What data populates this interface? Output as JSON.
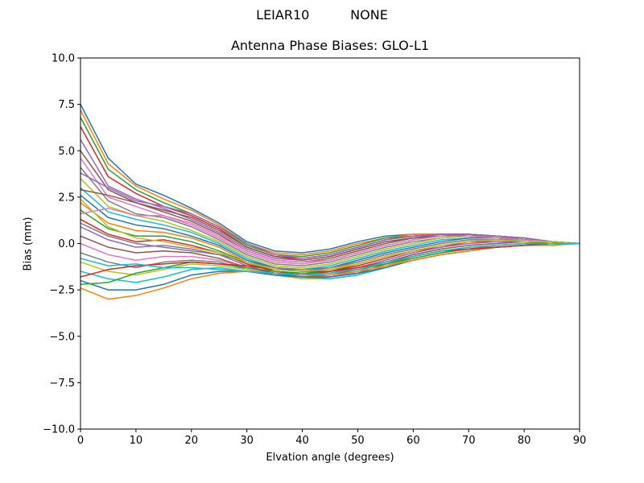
{
  "header": {
    "suptitle": "LEIAR10          NONE"
  },
  "colors": [
    "#1f77b4",
    "#ff7f0e",
    "#2ca02c",
    "#d62728",
    "#9467bd",
    "#8c564b",
    "#e377c2",
    "#7f7f7f",
    "#bcbd22",
    "#17becf"
  ],
  "chart_data": {
    "type": "line",
    "title": "Antenna Phase Biases: GLO-L1",
    "xlabel": "Elvation angle (degrees)",
    "ylabel": "Bias (mm)",
    "xlim": [
      0,
      90
    ],
    "ylim": [
      -10,
      10
    ],
    "x": [
      0,
      5,
      10,
      15,
      20,
      25,
      30,
      35,
      40,
      45,
      50,
      55,
      60,
      65,
      70,
      75,
      80,
      85,
      90
    ],
    "xticks": [
      0,
      10,
      20,
      30,
      40,
      50,
      60,
      70,
      80,
      90
    ],
    "yticks": [
      -10.0,
      -7.5,
      -5.0,
      -2.5,
      0.0,
      2.5,
      5.0,
      7.5,
      10.0
    ],
    "ytick_labels": [
      "−10.0",
      "−7.5",
      "−5.0",
      "−2.5",
      "0.0",
      "2.5",
      "5.0",
      "7.5",
      "10.0"
    ],
    "grid": false,
    "legend": "none",
    "series": [
      {
        "values": [
          7.5,
          4.6,
          3.2,
          2.6,
          1.9,
          1.1,
          0.1,
          -0.4,
          -0.5,
          -0.3,
          0.1,
          0.4,
          0.5,
          0.5,
          0.4,
          0.3,
          0.2,
          0.1,
          0.0
        ]
      },
      {
        "values": [
          7.2,
          4.3,
          3.1,
          2.4,
          1.8,
          1.0,
          0.0,
          -0.5,
          -0.6,
          -0.4,
          0.0,
          0.3,
          0.5,
          0.5,
          0.5,
          0.3,
          0.2,
          0.1,
          0.0
        ]
      },
      {
        "values": [
          6.8,
          4.0,
          2.9,
          2.2,
          1.6,
          0.9,
          -0.1,
          -0.6,
          -0.7,
          -0.5,
          -0.1,
          0.3,
          0.4,
          0.5,
          0.5,
          0.4,
          0.2,
          0.1,
          0.0
        ]
      },
      {
        "values": [
          6.3,
          3.6,
          2.7,
          2.0,
          1.5,
          0.8,
          -0.2,
          -0.7,
          -0.8,
          -0.6,
          -0.2,
          0.2,
          0.4,
          0.5,
          0.5,
          0.4,
          0.3,
          0.1,
          0.0
        ]
      },
      {
        "values": [
          5.6,
          3.1,
          2.4,
          1.9,
          1.3,
          0.6,
          -0.3,
          -0.8,
          -0.9,
          -0.7,
          -0.3,
          0.1,
          0.3,
          0.5,
          0.5,
          0.4,
          0.3,
          0.1,
          0.0
        ]
      },
      {
        "values": [
          5.0,
          2.9,
          2.2,
          1.7,
          1.2,
          0.5,
          -0.4,
          -0.9,
          -1.0,
          -0.8,
          -0.4,
          0.0,
          0.3,
          0.4,
          0.5,
          0.4,
          0.3,
          0.1,
          0.0
        ]
      },
      {
        "values": [
          4.6,
          2.5,
          2.0,
          1.5,
          1.0,
          0.3,
          -0.5,
          -1.0,
          -1.1,
          -0.9,
          -0.5,
          -0.1,
          0.2,
          0.4,
          0.4,
          0.4,
          0.3,
          0.1,
          0.0
        ]
      },
      {
        "values": [
          4.1,
          2.3,
          1.6,
          1.4,
          0.9,
          0.2,
          -0.6,
          -1.1,
          -1.2,
          -1.0,
          -0.6,
          -0.2,
          0.1,
          0.3,
          0.4,
          0.4,
          0.3,
          0.1,
          0.0
        ]
      },
      {
        "values": [
          3.5,
          2.0,
          1.5,
          1.2,
          0.7,
          0.1,
          -0.7,
          -1.2,
          -1.3,
          -1.1,
          -0.7,
          -0.3,
          0.0,
          0.3,
          0.4,
          0.3,
          0.2,
          0.1,
          0.0
        ]
      },
      {
        "values": [
          3.0,
          1.7,
          1.3,
          1.0,
          0.6,
          0.0,
          -0.8,
          -1.3,
          -1.4,
          -1.2,
          -0.8,
          -0.4,
          -0.1,
          0.2,
          0.3,
          0.3,
          0.2,
          0.1,
          0.0
        ]
      },
      {
        "values": [
          2.6,
          1.4,
          1.0,
          0.8,
          0.4,
          -0.1,
          -0.9,
          -1.3,
          -1.5,
          -1.3,
          -0.9,
          -0.5,
          -0.2,
          0.1,
          0.3,
          0.3,
          0.2,
          0.1,
          0.0
        ]
      },
      {
        "values": [
          2.2,
          1.1,
          0.7,
          0.6,
          0.3,
          -0.2,
          -1.0,
          -1.4,
          -1.5,
          -1.4,
          -1.0,
          -0.6,
          -0.3,
          0.0,
          0.2,
          0.2,
          0.2,
          0.1,
          0.0
        ]
      },
      {
        "values": [
          1.8,
          0.8,
          0.4,
          0.4,
          0.1,
          -0.4,
          -1.0,
          -1.5,
          -1.6,
          -1.5,
          -1.1,
          -0.7,
          -0.4,
          -0.1,
          0.1,
          0.2,
          0.2,
          0.1,
          0.0
        ]
      },
      {
        "values": [
          1.3,
          0.5,
          0.1,
          0.2,
          -0.1,
          -0.5,
          -1.1,
          -1.5,
          -1.7,
          -1.5,
          -1.2,
          -0.8,
          -0.4,
          -0.2,
          0.1,
          0.1,
          0.1,
          0.1,
          0.0
        ]
      },
      {
        "values": [
          0.9,
          0.2,
          -0.2,
          -0.1,
          -0.3,
          -0.6,
          -1.2,
          -1.6,
          -1.7,
          -1.6,
          -1.3,
          -0.9,
          -0.5,
          -0.2,
          0.0,
          0.1,
          0.1,
          0.0,
          0.0
        ]
      },
      {
        "values": [
          0.4,
          -0.2,
          -0.5,
          -0.4,
          -0.5,
          -0.8,
          -1.3,
          -1.6,
          -1.8,
          -1.7,
          -1.4,
          -1.0,
          -0.6,
          -0.3,
          -0.1,
          0.0,
          0.1,
          0.0,
          0.0
        ]
      },
      {
        "values": [
          0.0,
          -0.6,
          -0.9,
          -0.7,
          -0.7,
          -0.9,
          -1.3,
          -1.7,
          -1.8,
          -1.8,
          -1.5,
          -1.0,
          -0.7,
          -0.4,
          -0.2,
          -0.1,
          0.0,
          0.0,
          0.0
        ]
      },
      {
        "values": [
          -0.5,
          -1.0,
          -1.3,
          -1.0,
          -0.9,
          -1.0,
          -1.4,
          -1.7,
          -1.9,
          -1.8,
          -1.6,
          -1.1,
          -0.7,
          -0.4,
          -0.3,
          -0.1,
          0.0,
          0.0,
          0.0
        ]
      },
      {
        "values": [
          -1.0,
          -1.5,
          -1.7,
          -1.4,
          -1.1,
          -1.2,
          -1.4,
          -1.7,
          -1.9,
          -1.9,
          -1.7,
          -1.2,
          -0.8,
          -0.5,
          -0.3,
          -0.2,
          -0.1,
          0.0,
          0.0
        ]
      },
      {
        "values": [
          -1.5,
          -1.9,
          -2.1,
          -1.8,
          -1.4,
          -1.3,
          -1.5,
          -1.7,
          -1.8,
          -1.9,
          -1.7,
          -1.3,
          -0.9,
          -0.6,
          -0.4,
          -0.2,
          -0.1,
          0.0,
          0.0
        ]
      },
      {
        "values": [
          -2.0,
          -2.5,
          -2.5,
          -2.2,
          -1.7,
          -1.5,
          -1.5,
          -1.7,
          -1.8,
          -1.8,
          -1.6,
          -1.3,
          -0.9,
          -0.6,
          -0.4,
          -0.2,
          -0.1,
          0.0,
          0.0
        ]
      },
      {
        "values": [
          -2.4,
          -3.0,
          -2.8,
          -2.4,
          -1.9,
          -1.6,
          -1.5,
          -1.6,
          -1.7,
          -1.7,
          -1.5,
          -1.2,
          -0.9,
          -0.6,
          -0.4,
          -0.2,
          -0.1,
          -0.1,
          0.0
        ]
      },
      {
        "values": [
          -2.2,
          -2.1,
          -1.6,
          -1.3,
          -1.0,
          -1.1,
          -1.3,
          -1.5,
          -1.6,
          -1.6,
          -1.4,
          -1.1,
          -0.8,
          -0.5,
          -0.3,
          -0.2,
          -0.1,
          0.0,
          0.0
        ]
      },
      {
        "values": [
          -1.8,
          -1.4,
          -1.2,
          -1.1,
          -1.0,
          -1.1,
          -1.2,
          -1.4,
          -1.5,
          -1.5,
          -1.3,
          -1.0,
          -0.7,
          -0.4,
          -0.3,
          -0.2,
          -0.1,
          0.0,
          0.0
        ]
      },
      {
        "values": [
          3.8,
          3.0,
          2.3,
          2.0,
          1.6,
          0.9,
          0.0,
          -0.6,
          -0.8,
          -0.6,
          -0.2,
          0.2,
          0.4,
          0.5,
          0.5,
          0.4,
          0.3,
          0.1,
          0.0
        ]
      },
      {
        "values": [
          2.9,
          2.6,
          2.2,
          1.8,
          1.4,
          0.7,
          -0.2,
          -0.7,
          -0.9,
          -0.7,
          -0.3,
          0.1,
          0.3,
          0.4,
          0.4,
          0.3,
          0.2,
          0.1,
          0.0
        ]
      },
      {
        "values": [
          1.6,
          1.9,
          1.5,
          1.5,
          1.1,
          0.4,
          -0.4,
          -0.9,
          -1.0,
          -0.9,
          -0.5,
          -0.1,
          0.2,
          0.4,
          0.4,
          0.3,
          0.2,
          0.1,
          0.0
        ]
      },
      {
        "values": [
          1.1,
          0.4,
          0.0,
          -0.2,
          -0.4,
          -0.6,
          -1.0,
          -1.3,
          -1.4,
          -1.3,
          -1.0,
          -0.6,
          -0.3,
          0.0,
          0.2,
          0.2,
          0.1,
          0.1,
          0.0
        ]
      },
      {
        "values": [
          2.4,
          0.9,
          0.3,
          0.1,
          -0.2,
          -0.5,
          -1.0,
          -1.4,
          -1.5,
          -1.4,
          -1.1,
          -0.7,
          -0.4,
          -0.1,
          0.1,
          0.2,
          0.1,
          0.1,
          0.0
        ]
      },
      {
        "values": [
          -0.8,
          -1.2,
          -1.1,
          -1.3,
          -1.3,
          -1.4,
          -1.5,
          -1.6,
          -1.7,
          -1.6,
          -1.4,
          -1.0,
          -0.7,
          -0.4,
          -0.2,
          -0.1,
          0.0,
          0.0,
          0.0
        ]
      }
    ]
  }
}
